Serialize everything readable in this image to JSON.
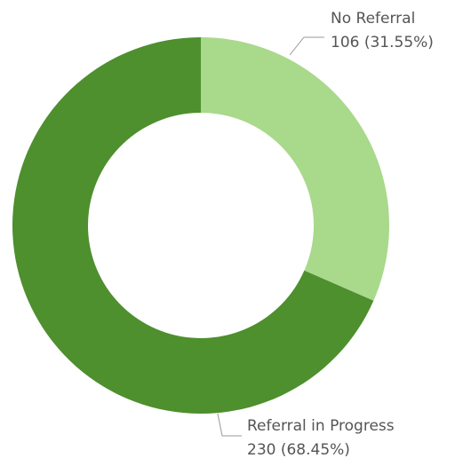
{
  "chart_data": {
    "type": "donut",
    "categories": [
      "No Referral",
      "Referral in Progress"
    ],
    "values": [
      106,
      230
    ],
    "value_labels": [
      "106 (31.55%)",
      "230 (68.45%)"
    ],
    "colors": [
      "#a9d98b",
      "#4e8f2e"
    ]
  }
}
